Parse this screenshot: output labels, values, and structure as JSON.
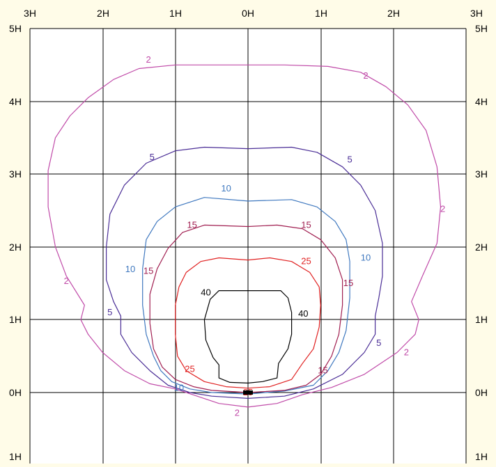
{
  "chart_data": {
    "type": "isolux-diagram",
    "x_tick_labels": [
      "3H",
      "2H",
      "1H",
      "0H",
      "1H",
      "2H",
      "3H"
    ],
    "y_tick_labels_left": [
      "5H",
      "4H",
      "3H",
      "2H",
      "1H",
      "0H",
      "1H"
    ],
    "y_tick_labels_right": [
      "5H",
      "4H",
      "3H",
      "2H",
      "1H",
      "0H",
      "1H"
    ],
    "contours": [
      {
        "level": "2",
        "color": "#c04aa8",
        "labels": [
          "2",
          "2",
          "2",
          "2",
          "2",
          "2"
        ],
        "points": [
          [
            0,
            4.5
          ],
          [
            -0.5,
            4.5
          ],
          [
            -1,
            4.5
          ],
          [
            -1.5,
            4.45
          ],
          [
            -1.85,
            4.3
          ],
          [
            -2.2,
            4.05
          ],
          [
            -2.45,
            3.8
          ],
          [
            -2.65,
            3.5
          ],
          [
            -2.75,
            3.05
          ],
          [
            -2.75,
            2.55
          ],
          [
            -2.65,
            2.0
          ],
          [
            -2.5,
            1.6
          ],
          [
            -2.25,
            1.2
          ],
          [
            -2.3,
            1.0
          ],
          [
            -2.2,
            0.8
          ],
          [
            -2.0,
            0.55
          ],
          [
            -1.7,
            0.3
          ],
          [
            -1.35,
            0.12
          ],
          [
            -1,
            0.05
          ],
          [
            -0.7,
            -0.05
          ],
          [
            -0.4,
            -0.15
          ],
          [
            0,
            -0.2
          ],
          [
            0.4,
            -0.15
          ],
          [
            0.75,
            -0.03
          ],
          [
            1.15,
            0.07
          ],
          [
            1.6,
            0.25
          ],
          [
            2.05,
            0.55
          ],
          [
            2.3,
            0.8
          ],
          [
            2.35,
            1.0
          ],
          [
            2.25,
            1.25
          ],
          [
            2.4,
            1.6
          ],
          [
            2.6,
            2.05
          ],
          [
            2.65,
            2.55
          ],
          [
            2.6,
            3.1
          ],
          [
            2.45,
            3.6
          ],
          [
            2.2,
            3.95
          ],
          [
            1.9,
            4.2
          ],
          [
            1.55,
            4.4
          ],
          [
            1.1,
            4.48
          ],
          [
            0.5,
            4.5
          ],
          [
            0,
            4.5
          ]
        ]
      },
      {
        "level": "5",
        "color": "#4a2d96",
        "labels": [
          "5",
          "5",
          "5",
          "5"
        ],
        "points": [
          [
            0,
            3.35
          ],
          [
            -0.6,
            3.37
          ],
          [
            -1.0,
            3.32
          ],
          [
            -1.4,
            3.15
          ],
          [
            -1.7,
            2.85
          ],
          [
            -1.9,
            2.45
          ],
          [
            -1.95,
            2.0
          ],
          [
            -1.95,
            1.55
          ],
          [
            -1.85,
            1.25
          ],
          [
            -1.75,
            1.05
          ],
          [
            -1.75,
            0.8
          ],
          [
            -1.6,
            0.55
          ],
          [
            -1.35,
            0.3
          ],
          [
            -1.1,
            0.1
          ],
          [
            -0.8,
            0.0
          ],
          [
            -0.5,
            -0.05
          ],
          [
            0,
            -0.08
          ],
          [
            0.5,
            -0.05
          ],
          [
            0.9,
            0.05
          ],
          [
            1.3,
            0.25
          ],
          [
            1.6,
            0.55
          ],
          [
            1.75,
            0.8
          ],
          [
            1.75,
            1.05
          ],
          [
            1.8,
            1.3
          ],
          [
            1.85,
            1.6
          ],
          [
            1.85,
            2.05
          ],
          [
            1.75,
            2.5
          ],
          [
            1.55,
            2.85
          ],
          [
            1.3,
            3.1
          ],
          [
            0.95,
            3.3
          ],
          [
            0.6,
            3.37
          ],
          [
            0,
            3.35
          ]
        ]
      },
      {
        "level": "10",
        "color": "#3f78bf",
        "labels": [
          "10",
          "10",
          "10",
          "10"
        ],
        "points": [
          [
            0,
            2.63
          ],
          [
            -0.6,
            2.68
          ],
          [
            -1.0,
            2.55
          ],
          [
            -1.25,
            2.35
          ],
          [
            -1.4,
            2.1
          ],
          [
            -1.45,
            1.7
          ],
          [
            -1.45,
            1.2
          ],
          [
            -1.4,
            0.8
          ],
          [
            -1.3,
            0.5
          ],
          [
            -1.2,
            0.3
          ],
          [
            -1.05,
            0.15
          ],
          [
            -0.8,
            0.05
          ],
          [
            -0.5,
            0.0
          ],
          [
            0,
            -0.02
          ],
          [
            0.5,
            0.02
          ],
          [
            0.9,
            0.1
          ],
          [
            1.1,
            0.3
          ],
          [
            1.25,
            0.55
          ],
          [
            1.35,
            0.85
          ],
          [
            1.4,
            1.3
          ],
          [
            1.4,
            1.8
          ],
          [
            1.35,
            2.1
          ],
          [
            1.2,
            2.35
          ],
          [
            0.95,
            2.55
          ],
          [
            0.6,
            2.65
          ],
          [
            0,
            2.63
          ]
        ]
      },
      {
        "level": "15",
        "color": "#a01e50",
        "labels": [
          "15",
          "15",
          "15",
          "15",
          "15"
        ],
        "points": [
          [
            0,
            2.28
          ],
          [
            -0.6,
            2.3
          ],
          [
            -0.9,
            2.2
          ],
          [
            -1.1,
            1.98
          ],
          [
            -1.25,
            1.7
          ],
          [
            -1.35,
            1.35
          ],
          [
            -1.35,
            0.95
          ],
          [
            -1.3,
            0.6
          ],
          [
            -1.18,
            0.35
          ],
          [
            -1.0,
            0.18
          ],
          [
            -0.75,
            0.08
          ],
          [
            -0.5,
            0.03
          ],
          [
            0,
            0.0
          ],
          [
            0.5,
            0.03
          ],
          [
            0.8,
            0.1
          ],
          [
            1.0,
            0.25
          ],
          [
            1.15,
            0.5
          ],
          [
            1.25,
            0.8
          ],
          [
            1.3,
            1.2
          ],
          [
            1.3,
            1.55
          ],
          [
            1.2,
            1.85
          ],
          [
            1.0,
            2.1
          ],
          [
            0.75,
            2.25
          ],
          [
            0.4,
            2.3
          ],
          [
            0,
            2.28
          ]
        ]
      },
      {
        "level": "25",
        "color": "#e02020",
        "labels": [
          "25",
          "25",
          "25"
        ],
        "points": [
          [
            0,
            1.82
          ],
          [
            -0.4,
            1.85
          ],
          [
            -0.65,
            1.8
          ],
          [
            -0.85,
            1.65
          ],
          [
            -0.95,
            1.45
          ],
          [
            -1.0,
            1.2
          ],
          [
            -1.0,
            0.8
          ],
          [
            -0.97,
            0.5
          ],
          [
            -0.85,
            0.3
          ],
          [
            -0.6,
            0.15
          ],
          [
            -0.3,
            0.08
          ],
          [
            0,
            0.06
          ],
          [
            0.3,
            0.08
          ],
          [
            0.6,
            0.18
          ],
          [
            0.75,
            0.4
          ],
          [
            0.9,
            0.6
          ],
          [
            0.98,
            0.9
          ],
          [
            1.0,
            1.2
          ],
          [
            0.98,
            1.45
          ],
          [
            0.85,
            1.65
          ],
          [
            0.6,
            1.8
          ],
          [
            0.3,
            1.85
          ],
          [
            0,
            1.82
          ]
        ]
      },
      {
        "level": "40",
        "color": "#000000",
        "labels": [
          "40",
          "40"
        ],
        "points": [
          [
            0,
            1.4
          ],
          [
            -0.4,
            1.4
          ],
          [
            -0.52,
            1.28
          ],
          [
            -0.6,
            1.0
          ],
          [
            -0.58,
            0.72
          ],
          [
            -0.48,
            0.48
          ],
          [
            -0.4,
            0.38
          ],
          [
            -0.4,
            0.2
          ],
          [
            -0.25,
            0.14
          ],
          [
            0,
            0.13
          ],
          [
            0.2,
            0.15
          ],
          [
            0.4,
            0.2
          ],
          [
            0.42,
            0.4
          ],
          [
            0.55,
            0.6
          ],
          [
            0.6,
            0.8
          ],
          [
            0.6,
            1.1
          ],
          [
            0.55,
            1.3
          ],
          [
            0.45,
            1.4
          ],
          [
            0.2,
            1.4
          ],
          [
            0,
            1.4
          ]
        ]
      }
    ],
    "fixture_symbol": "luminaire-marker"
  }
}
